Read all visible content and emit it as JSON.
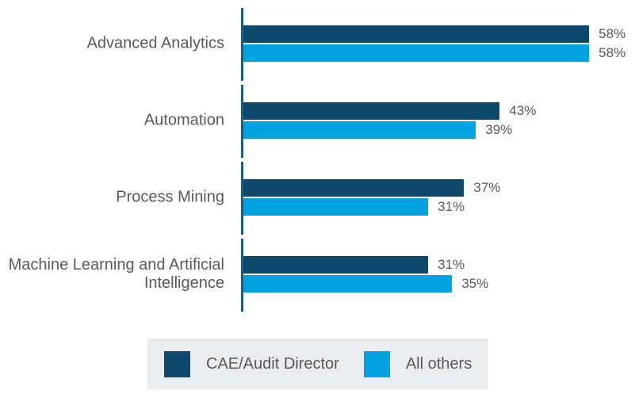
{
  "chart_data": {
    "type": "bar",
    "orientation": "horizontal",
    "categories": [
      "Advanced Analytics",
      "Automation",
      "Process Mining",
      "Machine Learning and Artificial Intelligence"
    ],
    "series": [
      {
        "name": "CAE/Audit Director",
        "color": "#0e486b",
        "values": [
          58,
          43,
          37,
          31
        ]
      },
      {
        "name": "All others",
        "color": "#00a3e0",
        "values": [
          58,
          39,
          31,
          35
        ]
      }
    ],
    "value_suffix": "%",
    "value_labels": [
      [
        "58%",
        "58%"
      ],
      [
        "43%",
        "39%"
      ],
      [
        "37%",
        "31%"
      ],
      [
        "31%",
        "35%"
      ]
    ],
    "xlim": [
      0,
      60
    ],
    "grid": false,
    "legend_position": "bottom",
    "axis_line_color": "#1a5f87",
    "label_color": "#58595b"
  },
  "legend": {
    "background": "#ebeced",
    "items": [
      {
        "label": "CAE/Audit Director",
        "color": "#0e486b"
      },
      {
        "label": "All others",
        "color": "#00a3e0"
      }
    ]
  }
}
